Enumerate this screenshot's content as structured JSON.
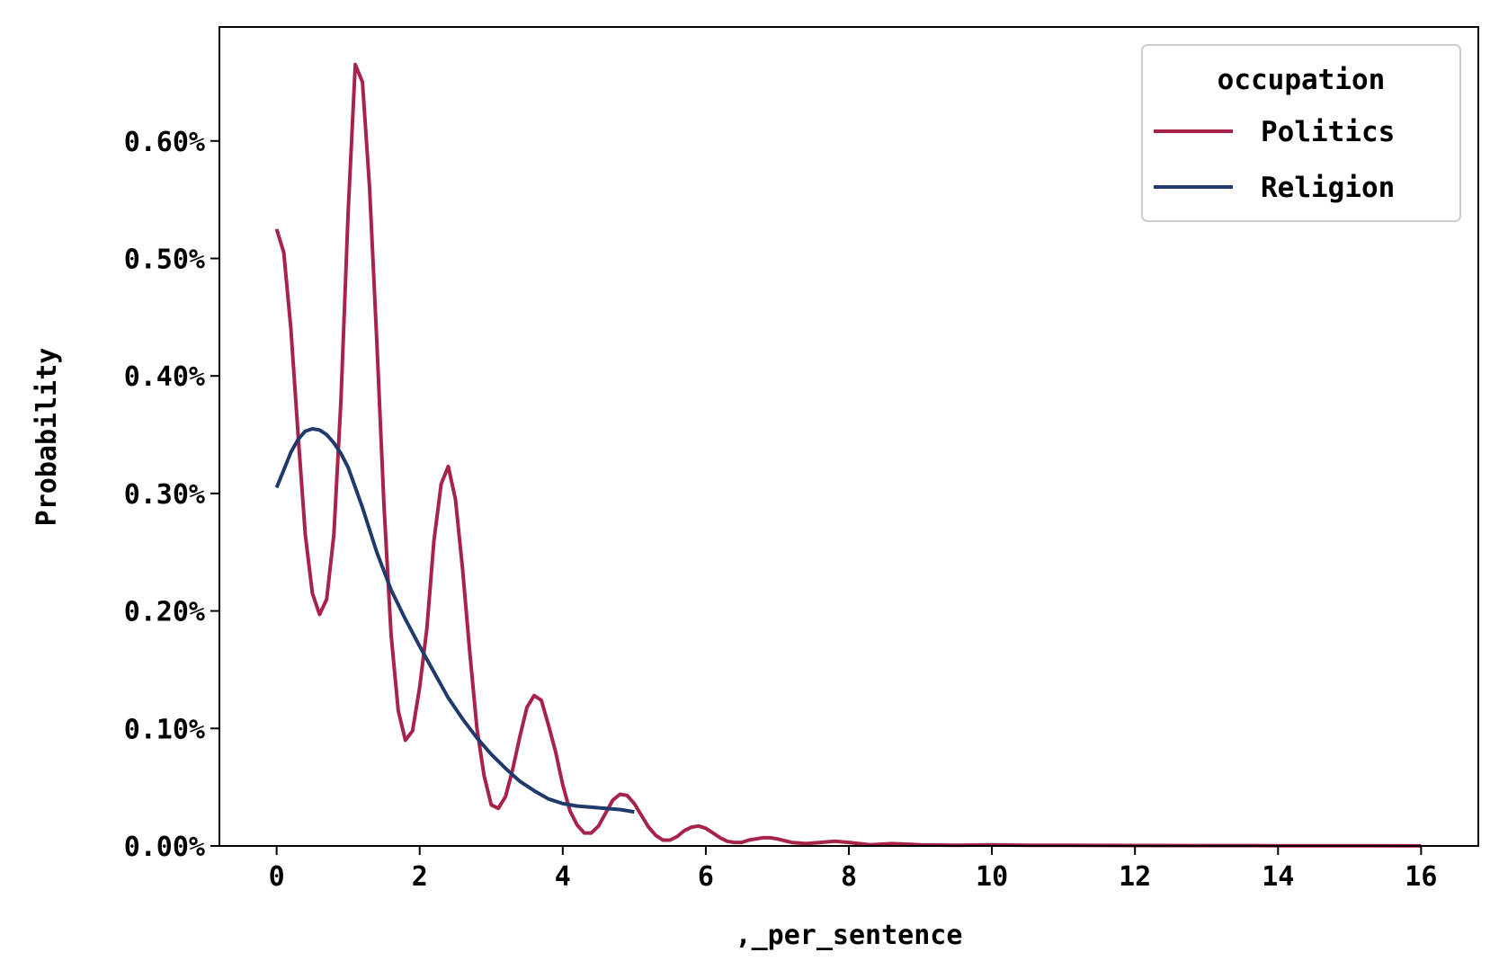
{
  "chart_data": {
    "type": "line",
    "xlabel": ",_per_sentence",
    "ylabel": "Probability",
    "xlim": [
      -0.8,
      16.8
    ],
    "ylim": [
      0,
      0.00697
    ],
    "x_ticks": [
      0,
      2,
      4,
      6,
      8,
      10,
      12,
      14,
      16
    ],
    "x_tick_labels": [
      "0",
      "2",
      "4",
      "6",
      "8",
      "10",
      "12",
      "14",
      "16"
    ],
    "y_ticks": [
      0,
      0.001,
      0.002,
      0.003,
      0.004,
      0.005,
      0.006
    ],
    "y_tick_labels": [
      "0.00%",
      "0.10%",
      "0.20%",
      "0.30%",
      "0.40%",
      "0.50%",
      "0.60%"
    ],
    "grid": false,
    "legend": {
      "title": "occupation",
      "position": "top-right"
    },
    "series": [
      {
        "name": "Politics",
        "color": "#A8234A",
        "x": [
          0,
          0.1,
          0.2,
          0.3,
          0.4,
          0.5,
          0.6,
          0.7,
          0.8,
          0.9,
          1.0,
          1.1,
          1.2,
          1.3,
          1.4,
          1.5,
          1.6,
          1.7,
          1.8,
          1.9,
          2.0,
          2.1,
          2.2,
          2.3,
          2.4,
          2.5,
          2.6,
          2.7,
          2.8,
          2.9,
          3.0,
          3.1,
          3.2,
          3.3,
          3.4,
          3.5,
          3.6,
          3.7,
          3.8,
          3.9,
          4.0,
          4.1,
          4.2,
          4.3,
          4.4,
          4.5,
          4.6,
          4.7,
          4.8,
          4.9,
          5.0,
          5.1,
          5.2,
          5.3,
          5.4,
          5.5,
          5.6,
          5.7,
          5.8,
          5.9,
          6.0,
          6.1,
          6.2,
          6.3,
          6.4,
          6.5,
          6.6,
          6.7,
          6.8,
          6.9,
          7.0,
          7.2,
          7.4,
          7.6,
          7.8,
          8.0,
          8.3,
          8.6,
          9.0,
          9.5,
          10.0,
          10.5,
          11.0,
          12.0,
          13.0,
          14.0,
          15.0,
          16.0
        ],
        "y": [
          0.00525,
          0.00505,
          0.0044,
          0.0035,
          0.00265,
          0.00215,
          0.00197,
          0.0021,
          0.00265,
          0.0038,
          0.0054,
          0.00665,
          0.0065,
          0.0056,
          0.0043,
          0.0029,
          0.0018,
          0.00115,
          0.0009,
          0.00098,
          0.00135,
          0.00185,
          0.0026,
          0.00308,
          0.00323,
          0.00295,
          0.00235,
          0.00165,
          0.001,
          0.0006,
          0.00035,
          0.00032,
          0.00042,
          0.00065,
          0.00093,
          0.00118,
          0.00128,
          0.00124,
          0.00103,
          0.0008,
          0.00052,
          0.0003,
          0.00018,
          0.00011,
          0.00011,
          0.00017,
          0.00028,
          0.00039,
          0.00044,
          0.00043,
          0.00036,
          0.00026,
          0.00016,
          9e-05,
          5e-05,
          5e-05,
          8e-05,
          0.00013,
          0.00016,
          0.00017,
          0.00015,
          0.00011,
          7e-05,
          4e-05,
          3e-05,
          3e-05,
          5e-05,
          6e-05,
          7e-05,
          7e-05,
          6e-05,
          3e-05,
          2e-05,
          3e-05,
          4e-05,
          3e-05,
          1e-05,
          2e-05,
          1e-05,
          5e-06,
          1e-05,
          5e-06,
          5e-06,
          4e-06,
          3e-06,
          2e-06,
          2e-06,
          1e-06
        ]
      },
      {
        "name": "Religion",
        "color": "#1F3A6B",
        "x": [
          0,
          0.1,
          0.2,
          0.3,
          0.4,
          0.5,
          0.6,
          0.7,
          0.8,
          0.9,
          1.0,
          1.2,
          1.4,
          1.6,
          1.8,
          2.0,
          2.2,
          2.4,
          2.6,
          2.8,
          3.0,
          3.2,
          3.4,
          3.6,
          3.8,
          4.0,
          4.2,
          4.4,
          4.6,
          4.8,
          5.0
        ],
        "y": [
          0.00305,
          0.0032,
          0.00335,
          0.00346,
          0.00353,
          0.00355,
          0.00354,
          0.0035,
          0.00343,
          0.00334,
          0.00322,
          0.00288,
          0.0025,
          0.00218,
          0.00193,
          0.0017,
          0.00148,
          0.00126,
          0.00108,
          0.00092,
          0.00078,
          0.00066,
          0.00055,
          0.00047,
          0.0004,
          0.00036,
          0.00034,
          0.00033,
          0.00032,
          0.00031,
          0.00029
        ]
      }
    ]
  }
}
